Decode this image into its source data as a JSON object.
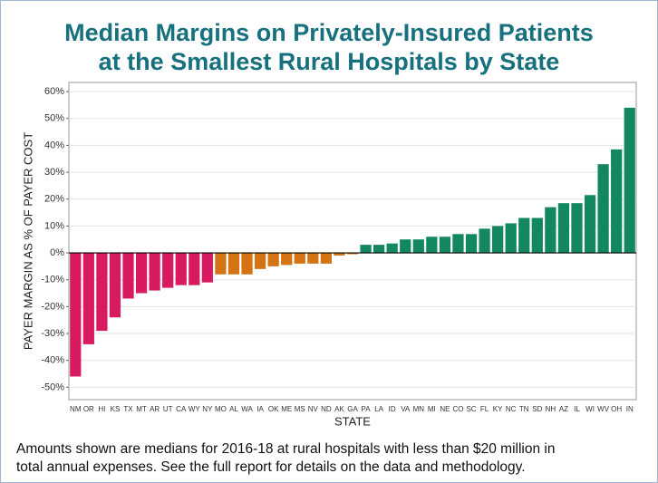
{
  "chart_data": {
    "type": "bar",
    "title": [
      "Median Margins on Privately-Insured Patients",
      "at the Smallest Rural Hospitals by State"
    ],
    "ylabel": "PAYER MARGIN AS % OF PAYER COST",
    "xlabel": "STATE",
    "footnote": [
      "Amounts shown are medians for 2016-18 at rural hospitals with less than $20 million in",
      "total annual expenses.  See the full report for details on the data and methodology."
    ],
    "categories": [
      "NM",
      "OR",
      "HI",
      "KS",
      "TX",
      "MT",
      "AR",
      "UT",
      "CA",
      "WY",
      "NY",
      "MO",
      "AL",
      "WA",
      "IA",
      "OK",
      "ME",
      "MS",
      "NV",
      "ND",
      "AK",
      "GA",
      "PA",
      "LA",
      "ID",
      "VA",
      "MN",
      "MI",
      "NE",
      "CO",
      "SC",
      "FL",
      "KY",
      "NC",
      "TN",
      "SD",
      "NH",
      "AZ",
      "IL",
      "WI",
      "WV",
      "OH",
      "IN"
    ],
    "values": [
      -46,
      -34,
      -29,
      -24,
      -17,
      -15,
      -14,
      -13,
      -12,
      -12,
      -11,
      -8,
      -8,
      -8,
      -6,
      -5,
      -4.5,
      -4,
      -4,
      -4,
      -1,
      -0.5,
      3,
      3,
      3.5,
      5,
      5,
      6,
      6,
      7,
      7,
      9,
      10,
      11,
      13,
      13,
      17,
      18.5,
      18.5,
      21.5,
      33,
      38.5,
      54
    ],
    "colors": [
      "#d81b60",
      "#d81b60",
      "#d81b60",
      "#d81b60",
      "#d81b60",
      "#d81b60",
      "#d81b60",
      "#d81b60",
      "#d81b60",
      "#d81b60",
      "#d81b60",
      "#d37312",
      "#d37312",
      "#d37312",
      "#d37312",
      "#d37312",
      "#d37312",
      "#d37312",
      "#d37312",
      "#d37312",
      "#d37312",
      "#d37312",
      "#13875e",
      "#13875e",
      "#13875e",
      "#13875e",
      "#13875e",
      "#13875e",
      "#13875e",
      "#13875e",
      "#13875e",
      "#13875e",
      "#13875e",
      "#13875e",
      "#13875e",
      "#13875e",
      "#13875e",
      "#13875e",
      "#13875e",
      "#13875e",
      "#13875e",
      "#13875e",
      "#13875e"
    ],
    "ylim": [
      -54.6,
      63.4
    ],
    "yticks": [
      {
        "value": -50,
        "label": "-50%"
      },
      {
        "value": -40,
        "label": "-40%"
      },
      {
        "value": -30,
        "label": "-30%"
      },
      {
        "value": -20,
        "label": "-20%"
      },
      {
        "value": -10,
        "label": "-10%"
      },
      {
        "value": 0,
        "label": "0%"
      },
      {
        "value": 10,
        "label": "10%"
      },
      {
        "value": 20,
        "label": "20%"
      },
      {
        "value": 30,
        "label": "30%"
      },
      {
        "value": 40,
        "label": "40%"
      },
      {
        "value": 50,
        "label": "50%"
      },
      {
        "value": 60,
        "label": "60%"
      }
    ],
    "grid": true
  }
}
